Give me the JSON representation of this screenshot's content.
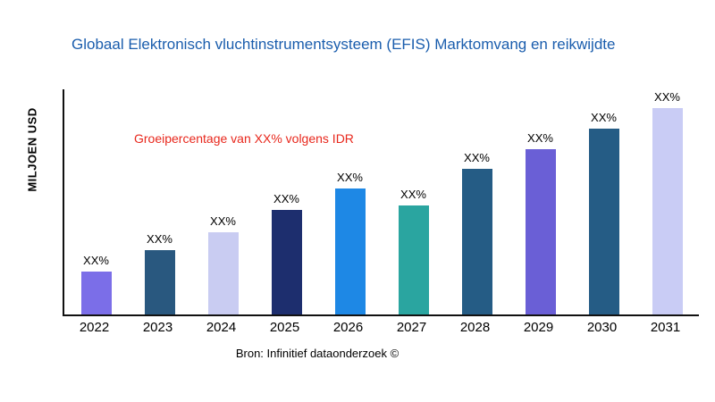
{
  "header": {
    "title": "Globaal Elektronisch vluchtinstrumentsysteem (EFIS) Marktomvang en reikwijdte"
  },
  "annotation": {
    "text": "Groeipercentage van XX% volgens IDR",
    "color": "#e8271c"
  },
  "footer": {
    "source": "Bron: Infinitief dataonderzoek ©"
  },
  "chart_data": {
    "type": "bar",
    "title": "Globaal Elektronisch vluchtinstrumentsysteem (EFIS) Marktomvang en reikwijdte",
    "xlabel": "",
    "ylabel": "MILJOEN USD",
    "categories": [
      "2022",
      "2023",
      "2024",
      "2025",
      "2026",
      "2027",
      "2028",
      "2029",
      "2030",
      "2031"
    ],
    "values": [
      48,
      72,
      92,
      117,
      141,
      122,
      163,
      185,
      208,
      231
    ],
    "value_unit": "relative-pixel-height",
    "bar_labels": [
      "XX%",
      "XX%",
      "XX%",
      "XX%",
      "XX%",
      "XX%",
      "XX%",
      "XX%",
      "XX%",
      "XX%"
    ],
    "bar_colors": [
      "#7b6ee8",
      "#29587f",
      "#c9ccf2",
      "#1d2e6e",
      "#1e88e5",
      "#2aa5a0",
      "#255c85",
      "#6a5fd6",
      "#255c85",
      "#c9ccf5"
    ],
    "grid": false,
    "legend": "none",
    "title_color": "#1a5dad",
    "axis_color": "#111111"
  }
}
